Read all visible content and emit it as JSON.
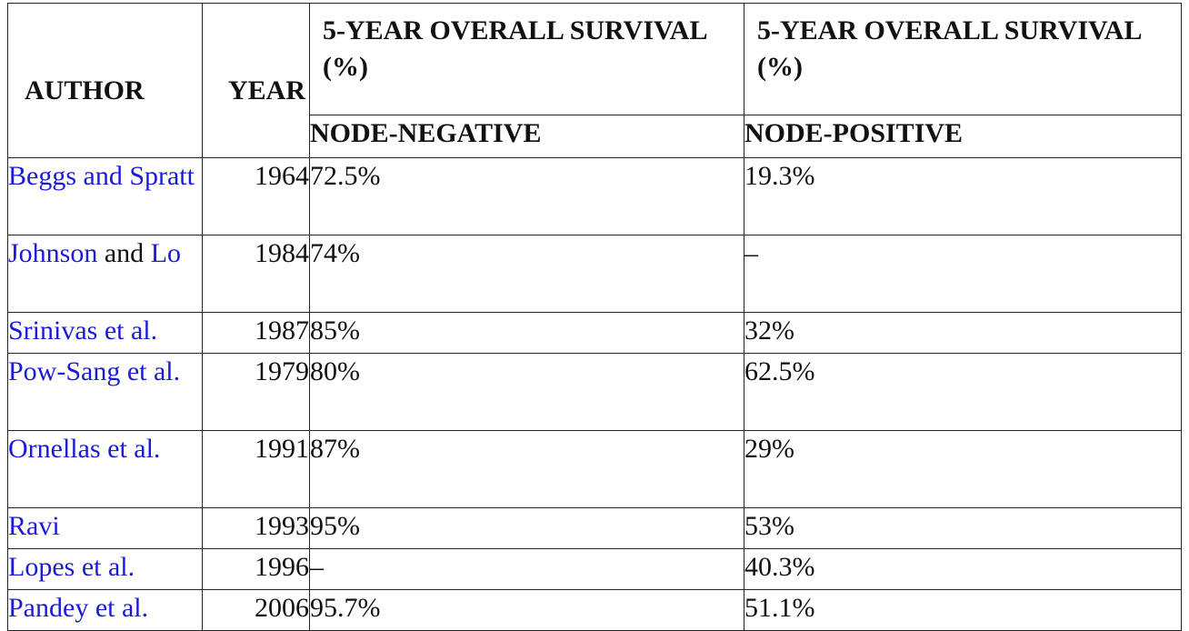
{
  "table": {
    "header": {
      "author": "AUTHOR",
      "year": "YEAR",
      "os_negative_title": "5-YEAR OVERALL SURVIVAL (%)",
      "os_positive_title": "5-YEAR OVERALL SURVIVAL (%)",
      "node_negative": "NODE-NEGATIVE",
      "node_positive": "NODE-POSITIVE"
    },
    "link_color": "#1a1ad8",
    "rows": [
      {
        "author": "Beggs and Spratt",
        "year": "1964",
        "node_negative": "72.5%",
        "node_positive": "19.3%"
      },
      {
        "author_link": "Johnson",
        "author_rest": " and ",
        "author_link2": "Lo",
        "year": "1984",
        "node_negative": "74%",
        "node_positive": "–"
      },
      {
        "author": "Srinivas et al.",
        "year": "1987",
        "node_negative": "85%",
        "node_positive": "32%"
      },
      {
        "author": "Pow-Sang et al.",
        "year": "1979",
        "node_negative": "80%",
        "node_positive": "62.5%"
      },
      {
        "author": "Ornellas et al.",
        "year": "1991",
        "node_negative": "87%",
        "node_positive": "29%"
      },
      {
        "author": "Ravi",
        "year": "1993",
        "node_negative": "95%",
        "node_positive": "53%"
      },
      {
        "author": "Lopes et al.",
        "year": "1996",
        "node_negative": "–",
        "node_positive": "40.3%"
      },
      {
        "author": "Pandey et al.",
        "year": "2006",
        "node_negative": "95.7%",
        "node_positive": "51.1%"
      }
    ]
  }
}
